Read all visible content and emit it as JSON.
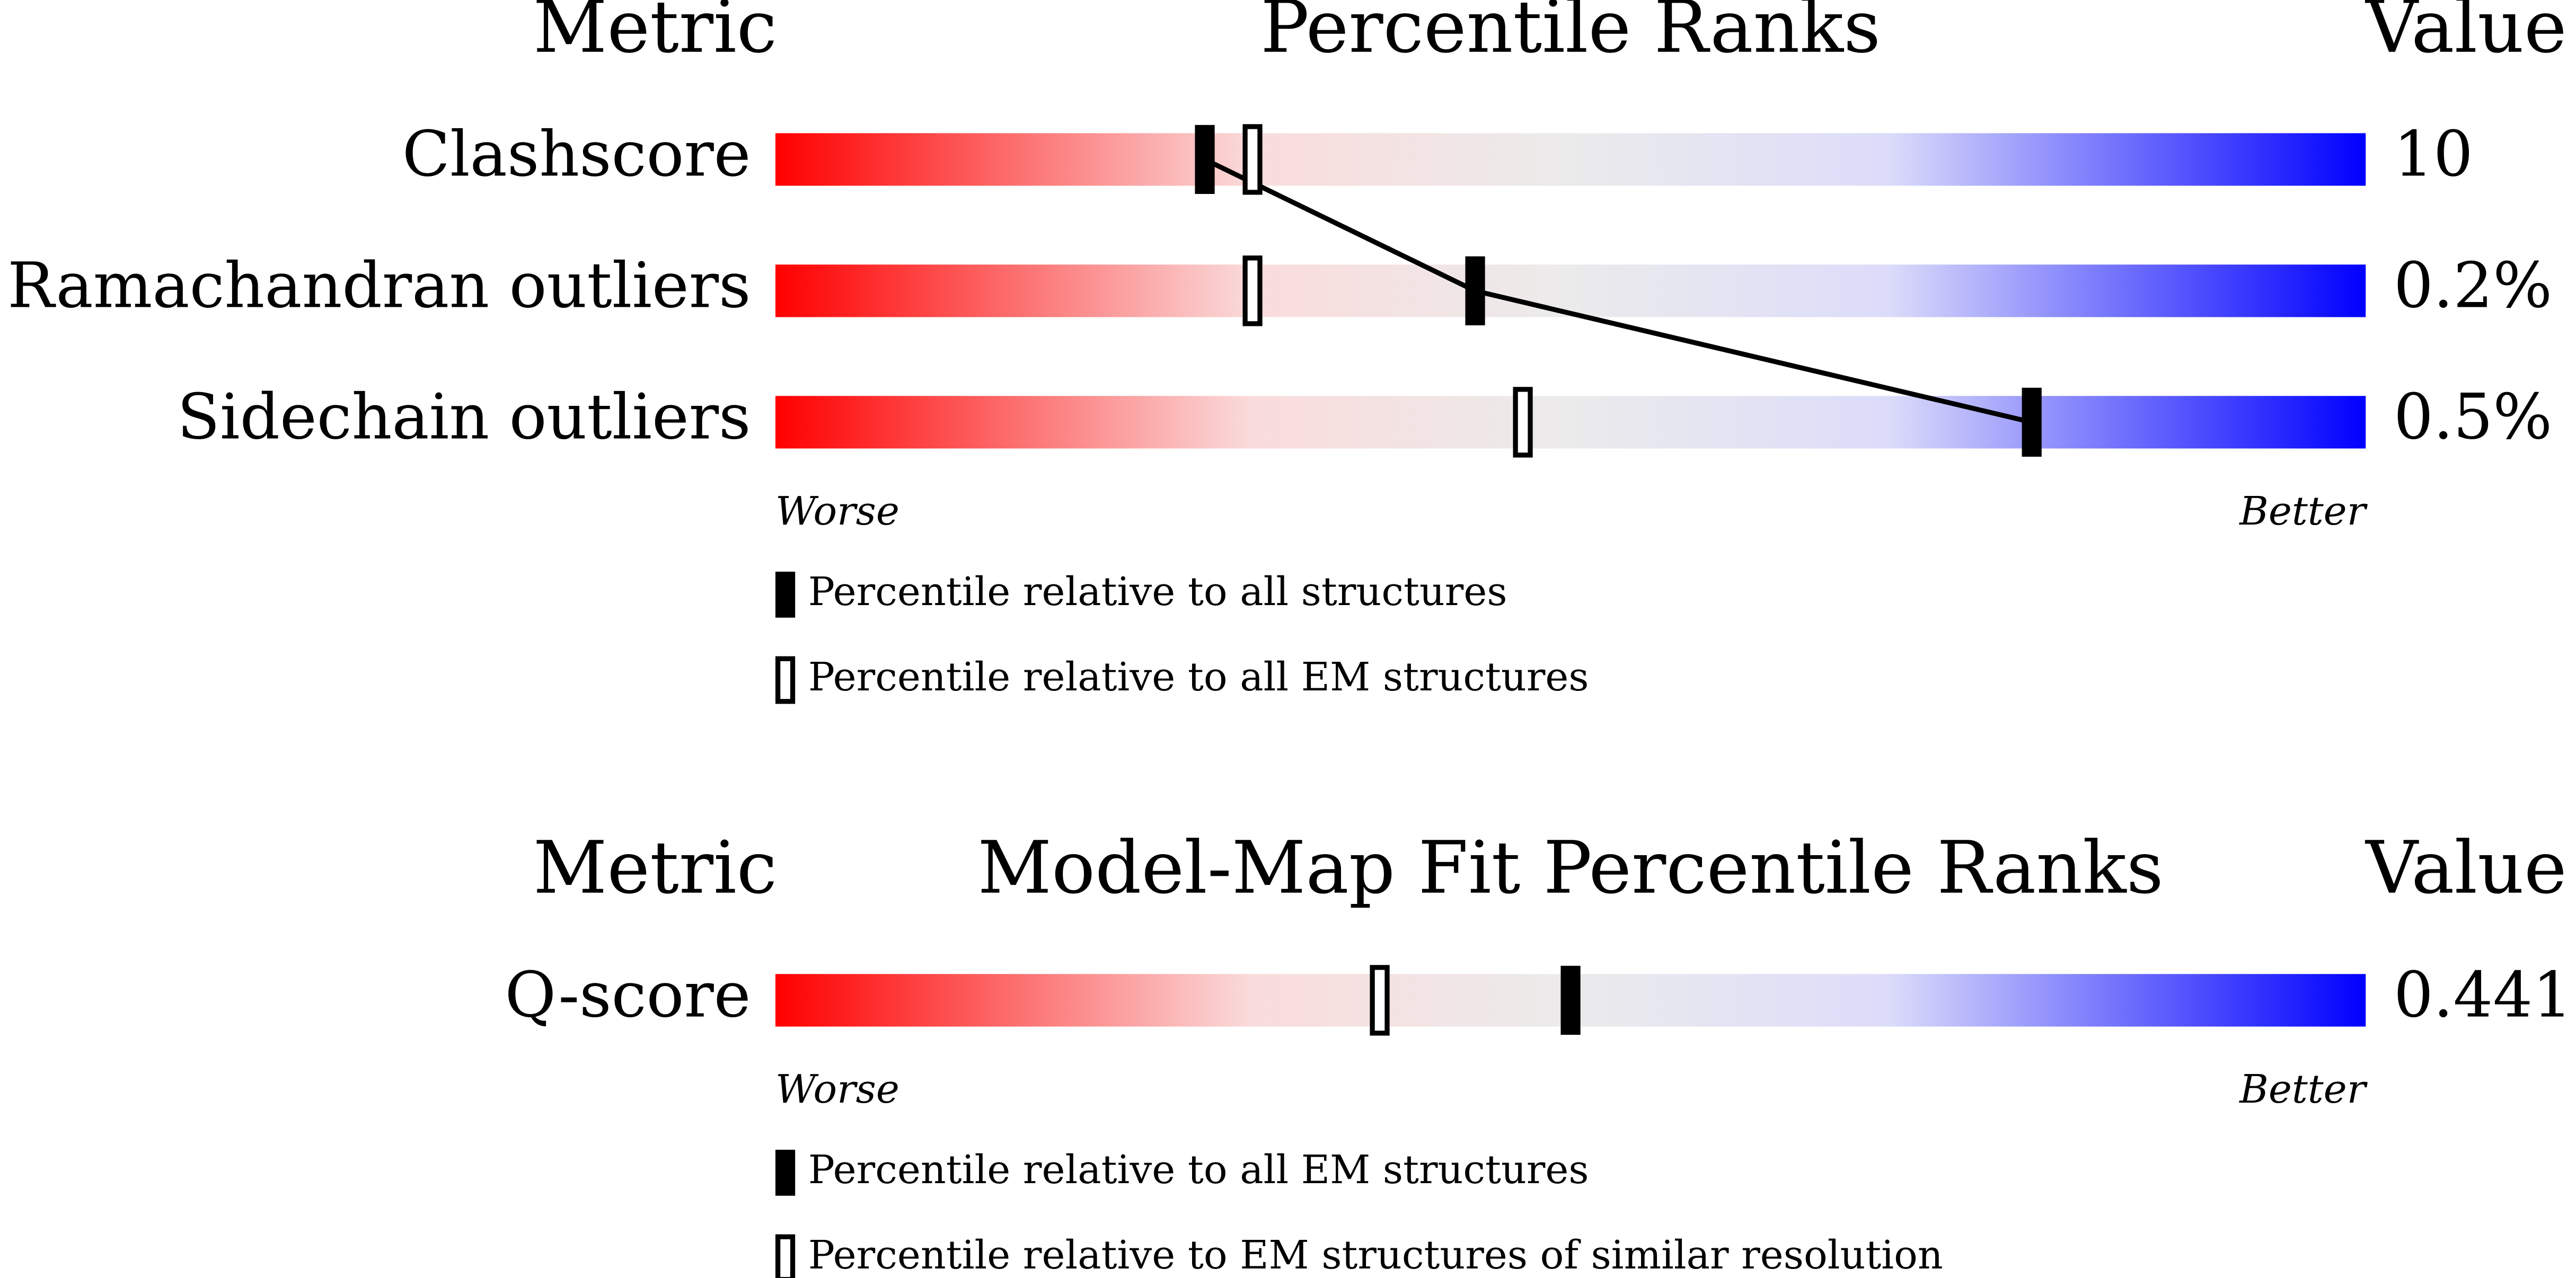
{
  "chart_data": [
    {
      "type": "percentile-slider",
      "metric_header": "Metric",
      "title": "Percentile Ranks",
      "value_header": "Value",
      "categories": [
        "Clashscore",
        "Ramachandran outliers",
        "Sidechain outliers"
      ],
      "metric_values": [
        "10",
        "0.2%",
        "0.5%"
      ],
      "xlim": [
        0,
        100
      ],
      "series": [
        {
          "name": "Percentile relative to all structures",
          "color": "#000000",
          "values": [
            27,
            44,
            79
          ]
        },
        {
          "name": "Percentile relative to all EM structures",
          "color": "#000000",
          "values": [
            30,
            30,
            47
          ]
        }
      ],
      "worse_label": "Worse",
      "better_label": "Better"
    },
    {
      "type": "percentile-slider",
      "metric_header": "Metric",
      "title": "Model-Map Fit Percentile Ranks",
      "value_header": "Value",
      "categories": [
        "Q-score"
      ],
      "metric_values": [
        "0.441"
      ],
      "xlim": [
        0,
        100
      ],
      "series": [
        {
          "name": "Percentile relative to all EM structures",
          "color": "#000000",
          "values": [
            50
          ]
        },
        {
          "name": "Percentile relative to EM structures of similar resolution",
          "color": "#000000",
          "values": [
            38
          ]
        }
      ],
      "worse_label": "Worse",
      "better_label": "Better"
    }
  ]
}
